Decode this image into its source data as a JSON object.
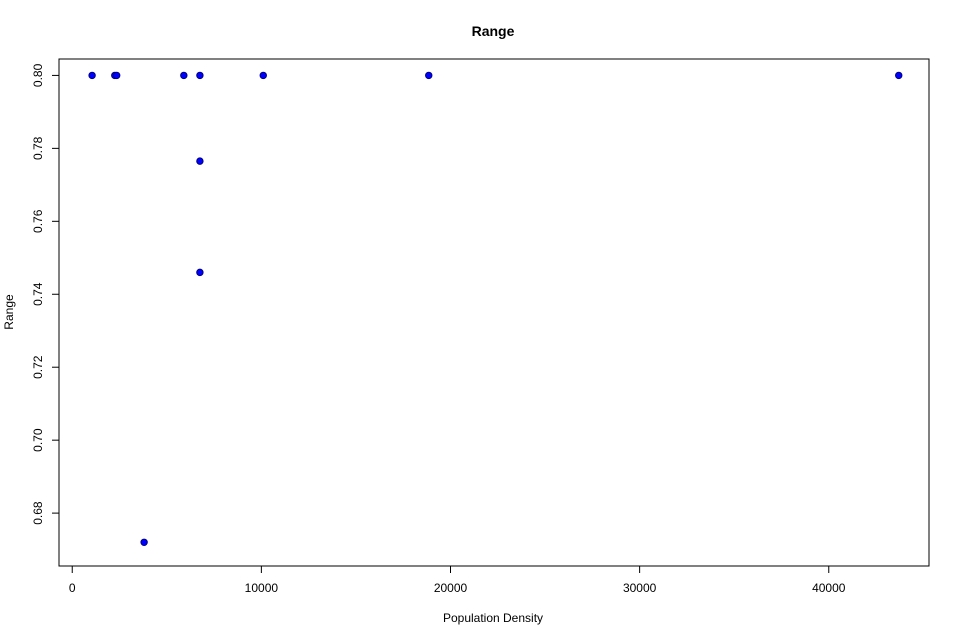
{
  "chart_data": {
    "type": "scatter",
    "title": "Range",
    "xlabel": "Population Density",
    "ylabel": "Range",
    "xlim": [
      -700,
      45300
    ],
    "ylim": [
      0.6655,
      0.8045
    ],
    "xticks": [
      0,
      10000,
      20000,
      30000,
      40000
    ],
    "xtick_labels": [
      "0",
      "10000",
      "20000",
      "30000",
      "40000"
    ],
    "yticks": [
      0.68,
      0.7,
      0.72,
      0.74,
      0.76,
      0.78,
      0.8
    ],
    "ytick_labels": [
      "0.68",
      "0.70",
      "0.72",
      "0.74",
      "0.76",
      "0.78",
      "0.80"
    ],
    "grid": false,
    "legend": "none",
    "point_color": "#0000FF",
    "point_outline": "#000080",
    "points": [
      {
        "x": 1050,
        "y": 0.8
      },
      {
        "x": 2250,
        "y": 0.8
      },
      {
        "x": 2350,
        "y": 0.8
      },
      {
        "x": 3800,
        "y": 0.672
      },
      {
        "x": 5900,
        "y": 0.8
      },
      {
        "x": 6750,
        "y": 0.8
      },
      {
        "x": 6750,
        "y": 0.7765
      },
      {
        "x": 6750,
        "y": 0.746
      },
      {
        "x": 10100,
        "y": 0.8
      },
      {
        "x": 18850,
        "y": 0.8
      },
      {
        "x": 43700,
        "y": 0.8
      }
    ]
  }
}
